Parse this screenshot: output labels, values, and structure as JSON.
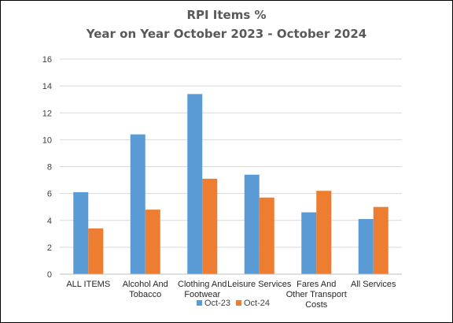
{
  "chart_data": {
    "type": "bar",
    "title": "RPI Items %",
    "subtitle": "Year on Year October 2023 - October 2024",
    "xlabel": "",
    "ylabel": "",
    "ylim": [
      0,
      16
    ],
    "yticks": [
      0,
      2,
      4,
      6,
      8,
      10,
      12,
      14,
      16
    ],
    "grid": true,
    "legend_position": "bottom",
    "categories": [
      [
        "ALL ITEMS"
      ],
      [
        "Alcohol And",
        "Tobacco"
      ],
      [
        "Clothing And",
        "Footwear"
      ],
      [
        "Leisure Services"
      ],
      [
        "Fares And",
        "Other Transport",
        "Costs"
      ],
      [
        "All Services"
      ]
    ],
    "series": [
      {
        "name": "Oct-23",
        "color": "#5b9bd5",
        "values": [
          6.1,
          10.4,
          13.4,
          7.4,
          4.6,
          4.1
        ]
      },
      {
        "name": "Oct-24",
        "color": "#ed7d31",
        "values": [
          3.4,
          4.8,
          7.1,
          5.7,
          6.2,
          5.0
        ]
      }
    ]
  }
}
